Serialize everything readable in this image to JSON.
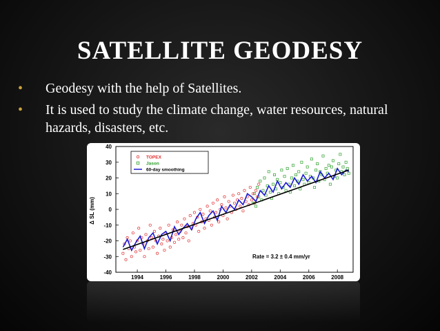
{
  "slide": {
    "title": "SATELLITE GEODESY",
    "bullets": [
      "Geodesy with the help of Satellites.",
      "It is used to study the climate change, water resources, natural hazards, disasters, etc."
    ],
    "bullet_color": "#c9a23a"
  },
  "chart_data": {
    "type": "scatter",
    "ylabel": "Δ SL (mm)",
    "xlim": [
      1992.5,
      2009.1
    ],
    "ylim": [
      -40,
      40
    ],
    "xticks": [
      1994,
      1996,
      1998,
      2000,
      2002,
      2004,
      2006,
      2008
    ],
    "yticks": [
      40,
      30,
      20,
      10,
      0,
      -10,
      -20,
      -30,
      -40
    ],
    "legend_position": "top-left",
    "annotation": "Rate = 3.2 ± 0.4 mm/yr",
    "series": [
      {
        "name": "TOPEX",
        "marker": "circle",
        "color": "#e03030",
        "x": [
          1993.0,
          1993.1,
          1993.2,
          1993.3,
          1993.4,
          1993.5,
          1993.6,
          1993.7,
          1993.8,
          1993.9,
          1994.0,
          1994.1,
          1994.2,
          1994.3,
          1994.4,
          1994.5,
          1994.6,
          1994.7,
          1994.8,
          1994.9,
          1995.0,
          1995.1,
          1995.2,
          1995.3,
          1995.4,
          1995.5,
          1995.6,
          1995.7,
          1995.8,
          1995.9,
          1996.0,
          1996.1,
          1996.2,
          1996.3,
          1996.4,
          1996.5,
          1996.6,
          1996.7,
          1996.8,
          1996.9,
          1997.0,
          1997.1,
          1997.2,
          1997.3,
          1997.4,
          1997.5,
          1997.6,
          1997.7,
          1997.8,
          1997.9,
          1998.0,
          1998.1,
          1998.2,
          1998.3,
          1998.4,
          1998.5,
          1998.6,
          1998.7,
          1998.8,
          1998.9,
          1999.0,
          1999.1,
          1999.2,
          1999.3,
          1999.4,
          1999.5,
          1999.6,
          1999.7,
          1999.8,
          1999.9,
          2000.0,
          2000.1,
          2000.2,
          2000.3,
          2000.4,
          2000.5,
          2000.6,
          2000.7,
          2000.8,
          2000.9,
          2001.0,
          2001.1,
          2001.2,
          2001.3,
          2001.4,
          2001.5,
          2001.6,
          2001.7,
          2001.8,
          2001.9,
          2002.0,
          2002.1,
          2002.2,
          2002.3,
          2002.4,
          2002.5
        ],
        "y": [
          -28,
          -22,
          -32,
          -18,
          -25,
          -20,
          -30,
          -15,
          -24,
          -27,
          -20,
          -12,
          -26,
          -18,
          -22,
          -30,
          -16,
          -20,
          -25,
          -10,
          -18,
          -24,
          -14,
          -20,
          -28,
          -17,
          -12,
          -22,
          -19,
          -26,
          -15,
          -20,
          -10,
          -24,
          -18,
          -13,
          -21,
          -16,
          -8,
          -19,
          -14,
          -10,
          -18,
          -6,
          -15,
          -11,
          -20,
          -4,
          -12,
          -9,
          -2,
          -10,
          -5,
          -14,
          0,
          -8,
          -3,
          -12,
          -6,
          2,
          -7,
          -1,
          -10,
          4,
          -5,
          -2,
          6,
          -8,
          0,
          3,
          -4,
          8,
          1,
          -6,
          5,
          2,
          -2,
          9,
          4,
          0,
          6,
          10,
          2,
          7,
          -1,
          12,
          5,
          8,
          3,
          14,
          6,
          10,
          4,
          12,
          8,
          16
        ]
      },
      {
        "name": "Jason",
        "marker": "square",
        "color": "#2a9d2a",
        "x": [
          2002.1,
          2002.2,
          2002.3,
          2002.4,
          2002.5,
          2002.6,
          2002.7,
          2002.8,
          2002.9,
          2003.0,
          2003.1,
          2003.2,
          2003.3,
          2003.4,
          2003.5,
          2003.6,
          2003.7,
          2003.8,
          2003.9,
          2004.0,
          2004.1,
          2004.2,
          2004.3,
          2004.4,
          2004.5,
          2004.6,
          2004.7,
          2004.8,
          2004.9,
          2005.0,
          2005.1,
          2005.2,
          2005.3,
          2005.4,
          2005.5,
          2005.6,
          2005.7,
          2005.8,
          2005.9,
          2006.0,
          2006.1,
          2006.2,
          2006.3,
          2006.4,
          2006.5,
          2006.6,
          2006.7,
          2006.8,
          2006.9,
          2007.0,
          2007.1,
          2007.2,
          2007.3,
          2007.4,
          2007.5,
          2007.6,
          2007.7,
          2007.8,
          2007.9,
          2008.0,
          2008.1,
          2008.2,
          2008.3,
          2008.4,
          2008.5,
          2008.6,
          2008.7,
          2008.8
        ],
        "y": [
          4,
          10,
          2,
          14,
          8,
          18,
          6,
          12,
          20,
          9,
          15,
          24,
          11,
          7,
          16,
          22,
          13,
          19,
          10,
          17,
          25,
          14,
          21,
          12,
          26,
          16,
          11,
          20,
          28,
          15,
          22,
          18,
          24,
          13,
          30,
          19,
          16,
          23,
          27,
          17,
          21,
          32,
          20,
          14,
          25,
          29,
          18,
          24,
          22,
          34,
          19,
          26,
          23,
          28,
          16,
          27,
          31,
          21,
          25,
          20,
          29,
          35,
          24,
          27,
          22,
          30,
          26,
          23
        ]
      },
      {
        "name": "60-day smoothing",
        "marker": "line",
        "color": "#1a1ad0",
        "x": [
          1993.0,
          1993.3,
          1993.6,
          1993.9,
          1994.2,
          1994.5,
          1994.8,
          1995.1,
          1995.4,
          1995.7,
          1996.0,
          1996.3,
          1996.6,
          1996.9,
          1997.2,
          1997.5,
          1997.8,
          1998.1,
          1998.4,
          1998.7,
          1999.0,
          1999.3,
          1999.6,
          1999.9,
          2000.2,
          2000.5,
          2000.8,
          2001.1,
          2001.4,
          2001.7,
          2002.0,
          2002.3,
          2002.6,
          2002.9,
          2003.2,
          2003.5,
          2003.8,
          2004.1,
          2004.4,
          2004.7,
          2005.0,
          2005.3,
          2005.6,
          2005.9,
          2006.2,
          2006.5,
          2006.8,
          2007.1,
          2007.4,
          2007.7,
          2008.0,
          2008.3,
          2008.6,
          2008.8
        ],
        "y": [
          -24,
          -19,
          -26,
          -21,
          -17,
          -25,
          -18,
          -15,
          -22,
          -16,
          -14,
          -20,
          -11,
          -16,
          -12,
          -9,
          -13,
          -6,
          -2,
          -9,
          -4,
          -1,
          -7,
          2,
          -2,
          3,
          0,
          6,
          3,
          10,
          8,
          5,
          12,
          9,
          15,
          11,
          18,
          13,
          17,
          14,
          20,
          16,
          22,
          18,
          21,
          17,
          24,
          20,
          23,
          19,
          26,
          22,
          25,
          24
        ]
      }
    ],
    "trend": {
      "name": "Rate",
      "x": [
        1993.0,
        2008.8
      ],
      "y": [
        -25.5,
        25.0
      ],
      "color": "#000000"
    }
  }
}
